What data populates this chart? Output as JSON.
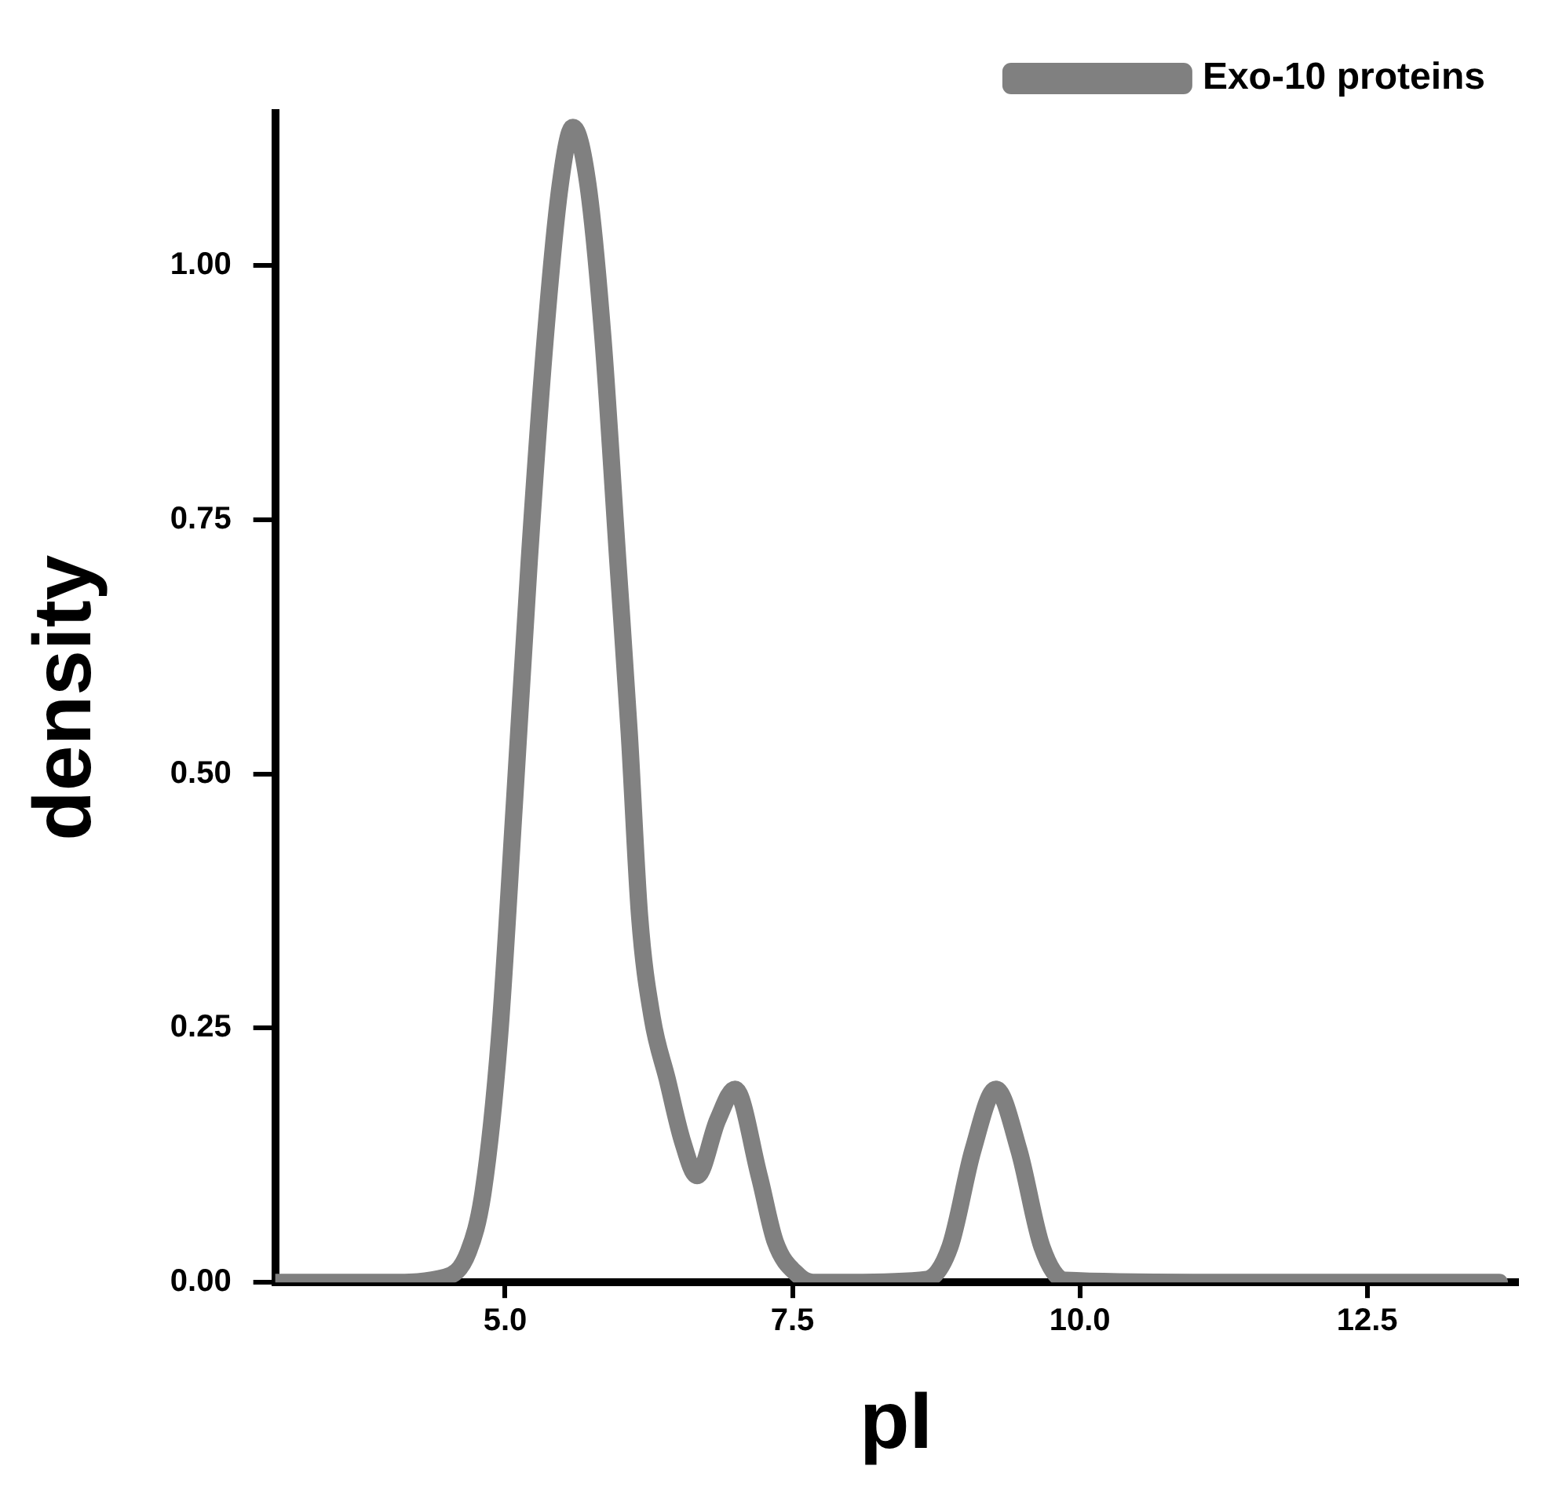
{
  "chart_data": {
    "type": "line",
    "xlabel": "pI",
    "ylabel": "density",
    "series": [
      {
        "name": "Exo-10 proteins",
        "color": "#808080",
        "x": [
          3.0,
          4.0,
          4.48,
          4.68,
          4.81,
          4.95,
          5.08,
          5.21,
          5.35,
          5.48,
          5.59,
          5.72,
          5.85,
          5.98,
          6.08,
          6.17,
          6.28,
          6.41,
          6.54,
          6.67,
          6.85,
          7.0,
          7.21,
          7.35,
          7.55,
          7.68,
          8.0,
          8.67,
          8.87,
          9.07,
          9.27,
          9.47,
          9.67,
          9.87,
          11.0,
          13.65
        ],
        "values": [
          0,
          0,
          0.005,
          0.03,
          0.09,
          0.24,
          0.47,
          0.71,
          0.93,
          1.08,
          1.136,
          1.08,
          0.93,
          0.71,
          0.54,
          0.36,
          0.26,
          0.2,
          0.14,
          0.105,
          0.16,
          0.19,
          0.105,
          0.04,
          0.007,
          0,
          0,
          0.003,
          0.035,
          0.13,
          0.19,
          0.13,
          0.035,
          0.002,
          0,
          0
        ]
      }
    ],
    "xlim": [
      3.0,
      13.8
    ],
    "xticks": [
      {
        "value": 5,
        "label": "5.0"
      },
      7.5,
      {
        "value": 10,
        "label": "10.0"
      },
      12.5
    ],
    "ylim": [
      0,
      1.15
    ],
    "yticks": [
      {
        "value": 0,
        "label": "0.00"
      },
      0.25,
      {
        "value": 0.5,
        "label": "0.50"
      },
      0.75,
      {
        "value": 1,
        "label": "1.00"
      }
    ],
    "grid": false,
    "legend": "top right",
    "marker": "none",
    "line_style": "solid"
  }
}
